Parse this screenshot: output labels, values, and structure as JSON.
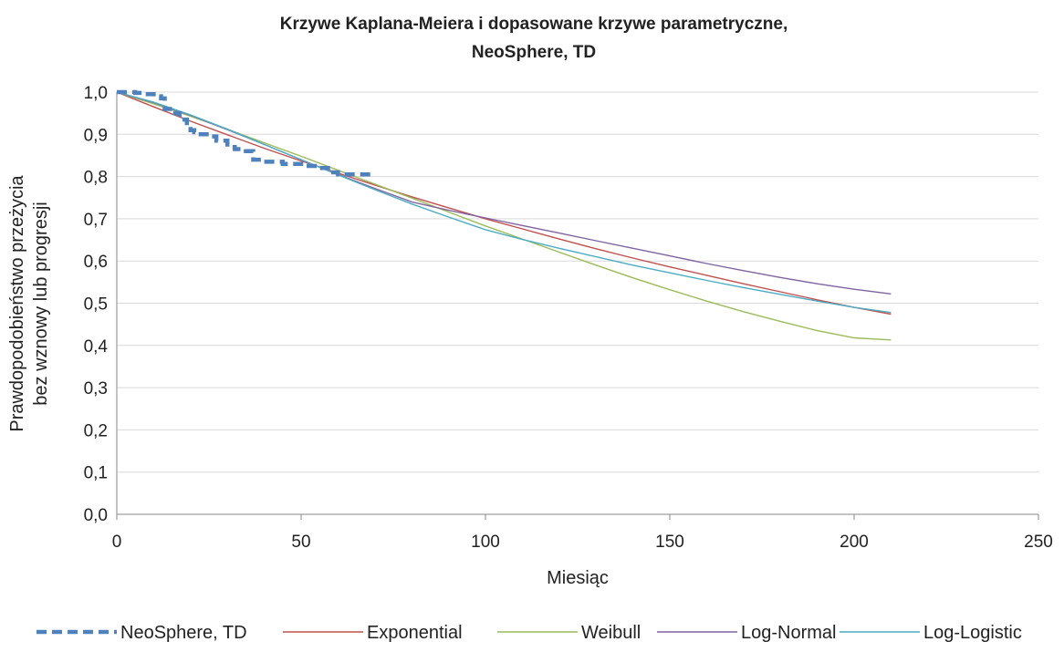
{
  "chart_data": {
    "type": "line",
    "title": [
      "Krzywe Kaplana-Meiera i dopasowane krzywe parametryczne,",
      "NeoSphere, TD"
    ],
    "xlabel": "Miesiąc",
    "ylabel": [
      "Prawdopodobieństwo przeżycia",
      "bez wznowy lub progresji"
    ],
    "xlim": [
      0,
      250
    ],
    "ylim": [
      0,
      1
    ],
    "x_ticks": [
      "0",
      "50",
      "100",
      "150",
      "200",
      "250"
    ],
    "x_tick_values": [
      0,
      50,
      100,
      150,
      200,
      250
    ],
    "y_ticks": [
      "0,0",
      "0,1",
      "0,2",
      "0,3",
      "0,4",
      "0,5",
      "0,6",
      "0,7",
      "0,8",
      "0,9",
      "1,0"
    ],
    "y_tick_values": [
      0,
      0.1,
      0.2,
      0.3,
      0.4,
      0.5,
      0.6,
      0.7,
      0.8,
      0.9,
      1.0
    ],
    "grid": true,
    "legend_position": "bottom",
    "series": [
      {
        "name": "NeoSphere, TD",
        "color": "#4f81bd",
        "style": "dashed",
        "step": true,
        "x": [
          0,
          5,
          7,
          10,
          12,
          13,
          15,
          17,
          19,
          20,
          21,
          22,
          25,
          27,
          30,
          32,
          35,
          37,
          40,
          45,
          50,
          55,
          58,
          60,
          62,
          65,
          70
        ],
        "y": [
          1.0,
          0.998,
          0.995,
          0.99,
          0.985,
          0.96,
          0.95,
          0.935,
          0.92,
          0.91,
          0.905,
          0.9,
          0.895,
          0.885,
          0.87,
          0.865,
          0.86,
          0.84,
          0.835,
          0.83,
          0.825,
          0.82,
          0.81,
          0.805,
          0.805,
          0.805,
          0.805
        ]
      },
      {
        "name": "Exponential",
        "color": "#c0504d",
        "style": "solid",
        "x": [
          0,
          10,
          20,
          30,
          40,
          50,
          60,
          70,
          80,
          90,
          100,
          110,
          120,
          130,
          140,
          150,
          160,
          170,
          180,
          190,
          200,
          210
        ],
        "y": [
          1.0,
          0.965,
          0.931,
          0.899,
          0.867,
          0.837,
          0.808,
          0.78,
          0.752,
          0.726,
          0.7,
          0.676,
          0.652,
          0.629,
          0.607,
          0.586,
          0.566,
          0.546,
          0.527,
          0.508,
          0.49,
          0.474
        ]
      },
      {
        "name": "Weibull",
        "color": "#9bbb59",
        "style": "solid",
        "x": [
          0,
          10,
          20,
          30,
          40,
          50,
          60,
          70,
          80,
          90,
          100,
          110,
          120,
          130,
          140,
          150,
          160,
          170,
          180,
          190,
          200,
          210
        ],
        "y": [
          1.0,
          0.972,
          0.943,
          0.912,
          0.88,
          0.848,
          0.815,
          0.782,
          0.749,
          0.716,
          0.683,
          0.652,
          0.621,
          0.59,
          0.56,
          0.532,
          0.505,
          0.48,
          0.457,
          0.435,
          0.418,
          0.413
        ]
      },
      {
        "name": "Log-Normal",
        "color": "#8064a2",
        "style": "solid",
        "x": [
          0,
          10,
          20,
          30,
          40,
          50,
          60,
          70,
          80,
          90,
          100,
          110,
          120,
          130,
          140,
          150,
          160,
          170,
          180,
          190,
          200,
          210
        ],
        "y": [
          1.0,
          0.975,
          0.945,
          0.911,
          0.876,
          0.84,
          0.805,
          0.772,
          0.74,
          0.72,
          0.702,
          0.684,
          0.666,
          0.648,
          0.63,
          0.612,
          0.594,
          0.577,
          0.561,
          0.546,
          0.533,
          0.522
        ]
      },
      {
        "name": "Log-Logistic",
        "color": "#4bacc6",
        "style": "solid",
        "x": [
          0,
          10,
          20,
          30,
          40,
          50,
          60,
          70,
          80,
          90,
          100,
          110,
          120,
          130,
          140,
          150,
          160,
          170,
          180,
          190,
          200,
          210
        ],
        "y": [
          1.0,
          0.976,
          0.946,
          0.912,
          0.876,
          0.84,
          0.804,
          0.769,
          0.735,
          0.704,
          0.674,
          0.651,
          0.63,
          0.61,
          0.59,
          0.572,
          0.554,
          0.537,
          0.521,
          0.505,
          0.49,
          0.478
        ]
      }
    ]
  }
}
